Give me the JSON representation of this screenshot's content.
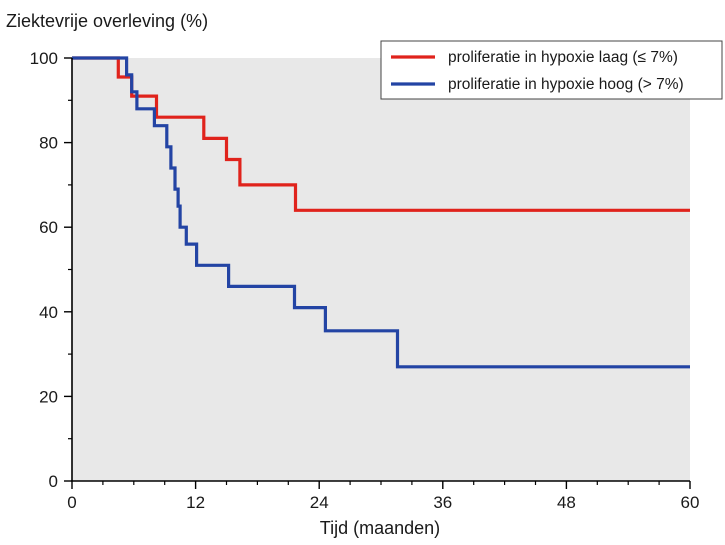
{
  "chart_data": {
    "type": "line",
    "step": true,
    "title": "",
    "ylabel": "Ziektevrije overleving (%)",
    "xlabel": "Tijd (maanden)",
    "xlim": [
      0,
      60
    ],
    "ylim": [
      0,
      100
    ],
    "xticks": [
      0,
      12,
      24,
      36,
      48,
      60
    ],
    "yticks": [
      0,
      20,
      40,
      60,
      80,
      100
    ],
    "x_minor_step": 3,
    "y_minor_step": 10,
    "plot_background": "#e8e8e8",
    "grid": false,
    "legend_position": "top-right",
    "series": [
      {
        "name": "proliferatie in hypoxie laag (≤ 7%)",
        "color": "#e0231c",
        "points": [
          [
            0,
            100
          ],
          [
            4.5,
            100
          ],
          [
            4.5,
            95.5
          ],
          [
            5.8,
            95.5
          ],
          [
            5.8,
            91
          ],
          [
            8.2,
            91
          ],
          [
            8.2,
            86
          ],
          [
            12.8,
            86
          ],
          [
            12.8,
            81
          ],
          [
            15,
            81
          ],
          [
            15,
            76
          ],
          [
            16.3,
            76
          ],
          [
            16.3,
            70
          ],
          [
            21.7,
            70
          ],
          [
            21.7,
            64
          ],
          [
            60,
            64
          ]
        ]
      },
      {
        "name": "proliferatie in hypoxie hoog (> 7%)",
        "color": "#2344a4",
        "points": [
          [
            0,
            100
          ],
          [
            5.3,
            100
          ],
          [
            5.3,
            96
          ],
          [
            5.8,
            96
          ],
          [
            5.8,
            92
          ],
          [
            6.3,
            92
          ],
          [
            6.3,
            88
          ],
          [
            8,
            88
          ],
          [
            8,
            84
          ],
          [
            9.2,
            84
          ],
          [
            9.2,
            79
          ],
          [
            9.6,
            79
          ],
          [
            9.6,
            74
          ],
          [
            10,
            74
          ],
          [
            10,
            69
          ],
          [
            10.3,
            69
          ],
          [
            10.3,
            65
          ],
          [
            10.5,
            65
          ],
          [
            10.5,
            60
          ],
          [
            11.1,
            60
          ],
          [
            11.1,
            56
          ],
          [
            12.1,
            56
          ],
          [
            12.1,
            51
          ],
          [
            15.2,
            51
          ],
          [
            15.2,
            46
          ],
          [
            21.6,
            46
          ],
          [
            21.6,
            41
          ],
          [
            24.6,
            41
          ],
          [
            24.6,
            35.5
          ],
          [
            31.6,
            35.5
          ],
          [
            31.6,
            27
          ],
          [
            60,
            27
          ]
        ]
      }
    ]
  }
}
